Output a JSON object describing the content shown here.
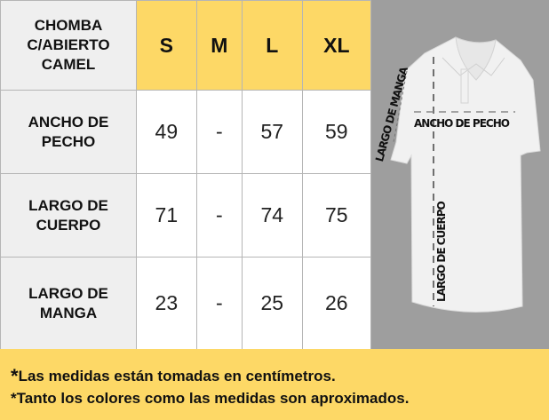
{
  "table": {
    "title": "CHOMBA C/ABIERTO CAMEL",
    "title_lines": [
      "CHOMBA",
      "C/ABIERTO",
      "CAMEL"
    ],
    "sizes": [
      "S",
      "M",
      "L",
      "XL"
    ],
    "rows": [
      {
        "label_lines": [
          "ANCHO DE",
          "PECHO"
        ],
        "values": [
          "49",
          "-",
          "57",
          "59"
        ]
      },
      {
        "label_lines": [
          "LARGO DE",
          "CUERPO"
        ],
        "values": [
          "71",
          "-",
          "74",
          "75"
        ]
      },
      {
        "label_lines": [
          "LARGO DE",
          "MANGA"
        ],
        "values": [
          "23",
          "-",
          "25",
          "26"
        ]
      }
    ]
  },
  "diagram": {
    "sleeve_label": "LARGO DE MANGA",
    "chest_label": "ANCHO DE PECHO",
    "body_label": "LARGO DE CUERPO"
  },
  "footer": {
    "star": "*",
    "notes": [
      "Las medidas están tomadas en centímetros.",
      "Tanto los colores como las medidas son aproximados."
    ]
  },
  "colors": {
    "header": "#fdd866",
    "label_bg": "#efefef",
    "panel": "#9e9e9e"
  }
}
